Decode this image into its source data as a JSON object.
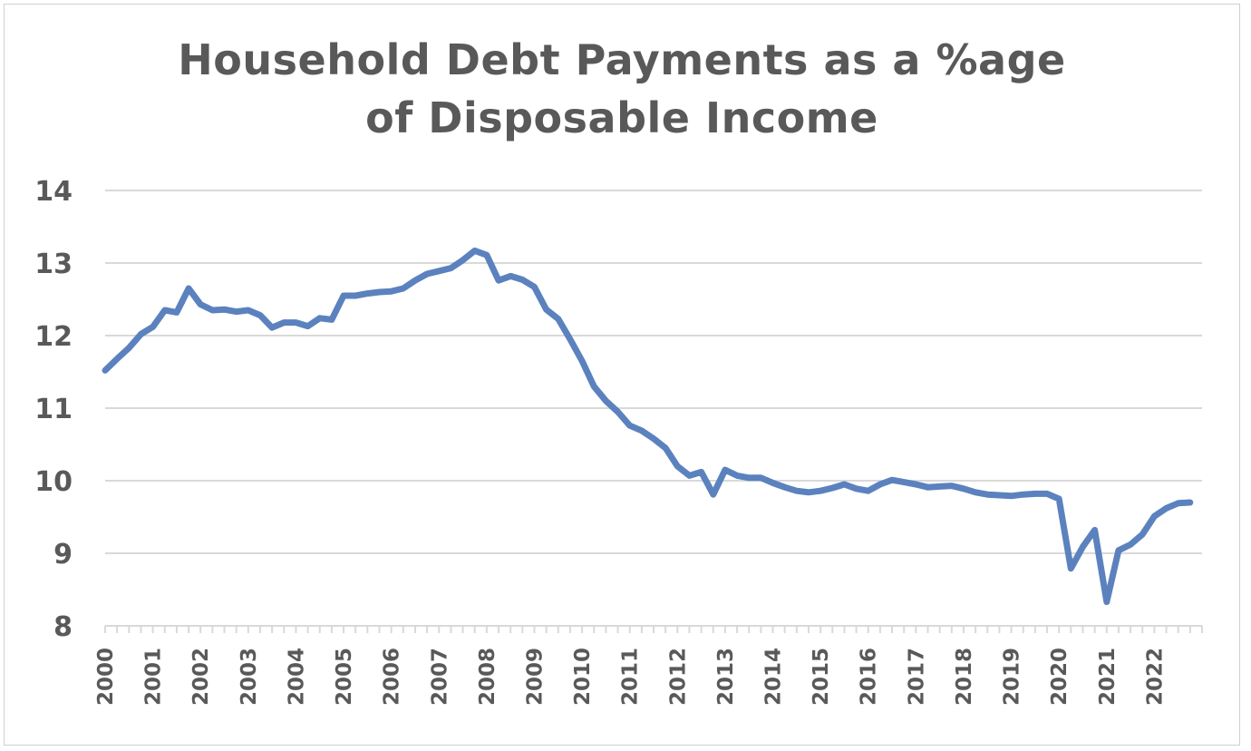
{
  "chart_data": {
    "type": "line",
    "title_lines": [
      "Household Debt Payments as a %age",
      "of Disposable Income"
    ],
    "xlabel": "",
    "ylabel": "",
    "ylim": [
      8,
      14
    ],
    "yticks": [
      "8",
      "9",
      "10",
      "11",
      "12",
      "13",
      "14"
    ],
    "xlim": [
      2000,
      2023
    ],
    "xticks": [
      "2000",
      "2001",
      "2002",
      "2003",
      "2004",
      "2005",
      "2006",
      "2007",
      "2008",
      "2009",
      "2010",
      "2011",
      "2012",
      "2013",
      "2014",
      "2015",
      "2016",
      "2017",
      "2018",
      "2019",
      "2020",
      "2021",
      "2022"
    ],
    "grid": "horizontal",
    "legend": "none",
    "line_color": "#5b82be",
    "series": [
      {
        "x": [
          2000.0,
          2000.25,
          2000.5,
          2000.75,
          2001.0,
          2001.25,
          2001.5,
          2001.75,
          2002.0,
          2002.25,
          2002.5,
          2002.75,
          2003.0,
          2003.25,
          2003.5,
          2003.75,
          2004.0,
          2004.25,
          2004.5,
          2004.75,
          2005.0,
          2005.25,
          2005.5,
          2005.75,
          2006.0,
          2006.25,
          2006.5,
          2006.75,
          2007.0,
          2007.25,
          2007.5,
          2007.75,
          2008.0,
          2008.25,
          2008.5,
          2008.75,
          2009.0,
          2009.25,
          2009.5,
          2009.75,
          2010.0,
          2010.25,
          2010.5,
          2010.75,
          2011.0,
          2011.25,
          2011.5,
          2011.75,
          2012.0,
          2012.25,
          2012.5,
          2012.75,
          2013.0,
          2013.25,
          2013.5,
          2013.75,
          2014.0,
          2014.25,
          2014.5,
          2014.75,
          2015.0,
          2015.25,
          2015.5,
          2015.75,
          2016.0,
          2016.25,
          2016.5,
          2016.75,
          2017.0,
          2017.25,
          2017.5,
          2017.75,
          2018.0,
          2018.25,
          2018.5,
          2018.75,
          2019.0,
          2019.25,
          2019.5,
          2019.75,
          2020.0,
          2020.25,
          2020.5,
          2020.75,
          2021.0,
          2021.25,
          2021.5,
          2021.75,
          2022.0,
          2022.25,
          2022.5,
          2022.75
        ],
        "y": [
          11.52,
          11.68,
          11.83,
          12.02,
          12.12,
          12.35,
          12.32,
          12.65,
          12.43,
          12.35,
          12.36,
          12.33,
          12.35,
          12.28,
          12.11,
          12.18,
          12.18,
          12.13,
          12.24,
          12.22,
          12.55,
          12.55,
          12.58,
          12.6,
          12.61,
          12.65,
          12.76,
          12.85,
          12.89,
          12.93,
          13.04,
          13.17,
          13.11,
          12.76,
          12.82,
          12.77,
          12.67,
          12.36,
          12.23,
          11.95,
          11.65,
          11.3,
          11.1,
          10.95,
          10.76,
          10.69,
          10.58,
          10.45,
          10.2,
          10.07,
          10.12,
          9.81,
          10.15,
          10.07,
          10.04,
          10.04,
          9.97,
          9.91,
          9.86,
          9.84,
          9.86,
          9.9,
          9.95,
          9.89,
          9.86,
          9.95,
          10.01,
          9.98,
          9.95,
          9.91,
          9.92,
          9.93,
          9.89,
          9.84,
          9.81,
          9.8,
          9.79,
          9.81,
          9.82,
          9.82,
          9.75,
          8.79,
          9.09,
          9.32,
          8.33,
          9.04,
          9.12,
          9.26,
          9.51,
          9.62,
          9.69,
          9.7
        ]
      }
    ]
  }
}
